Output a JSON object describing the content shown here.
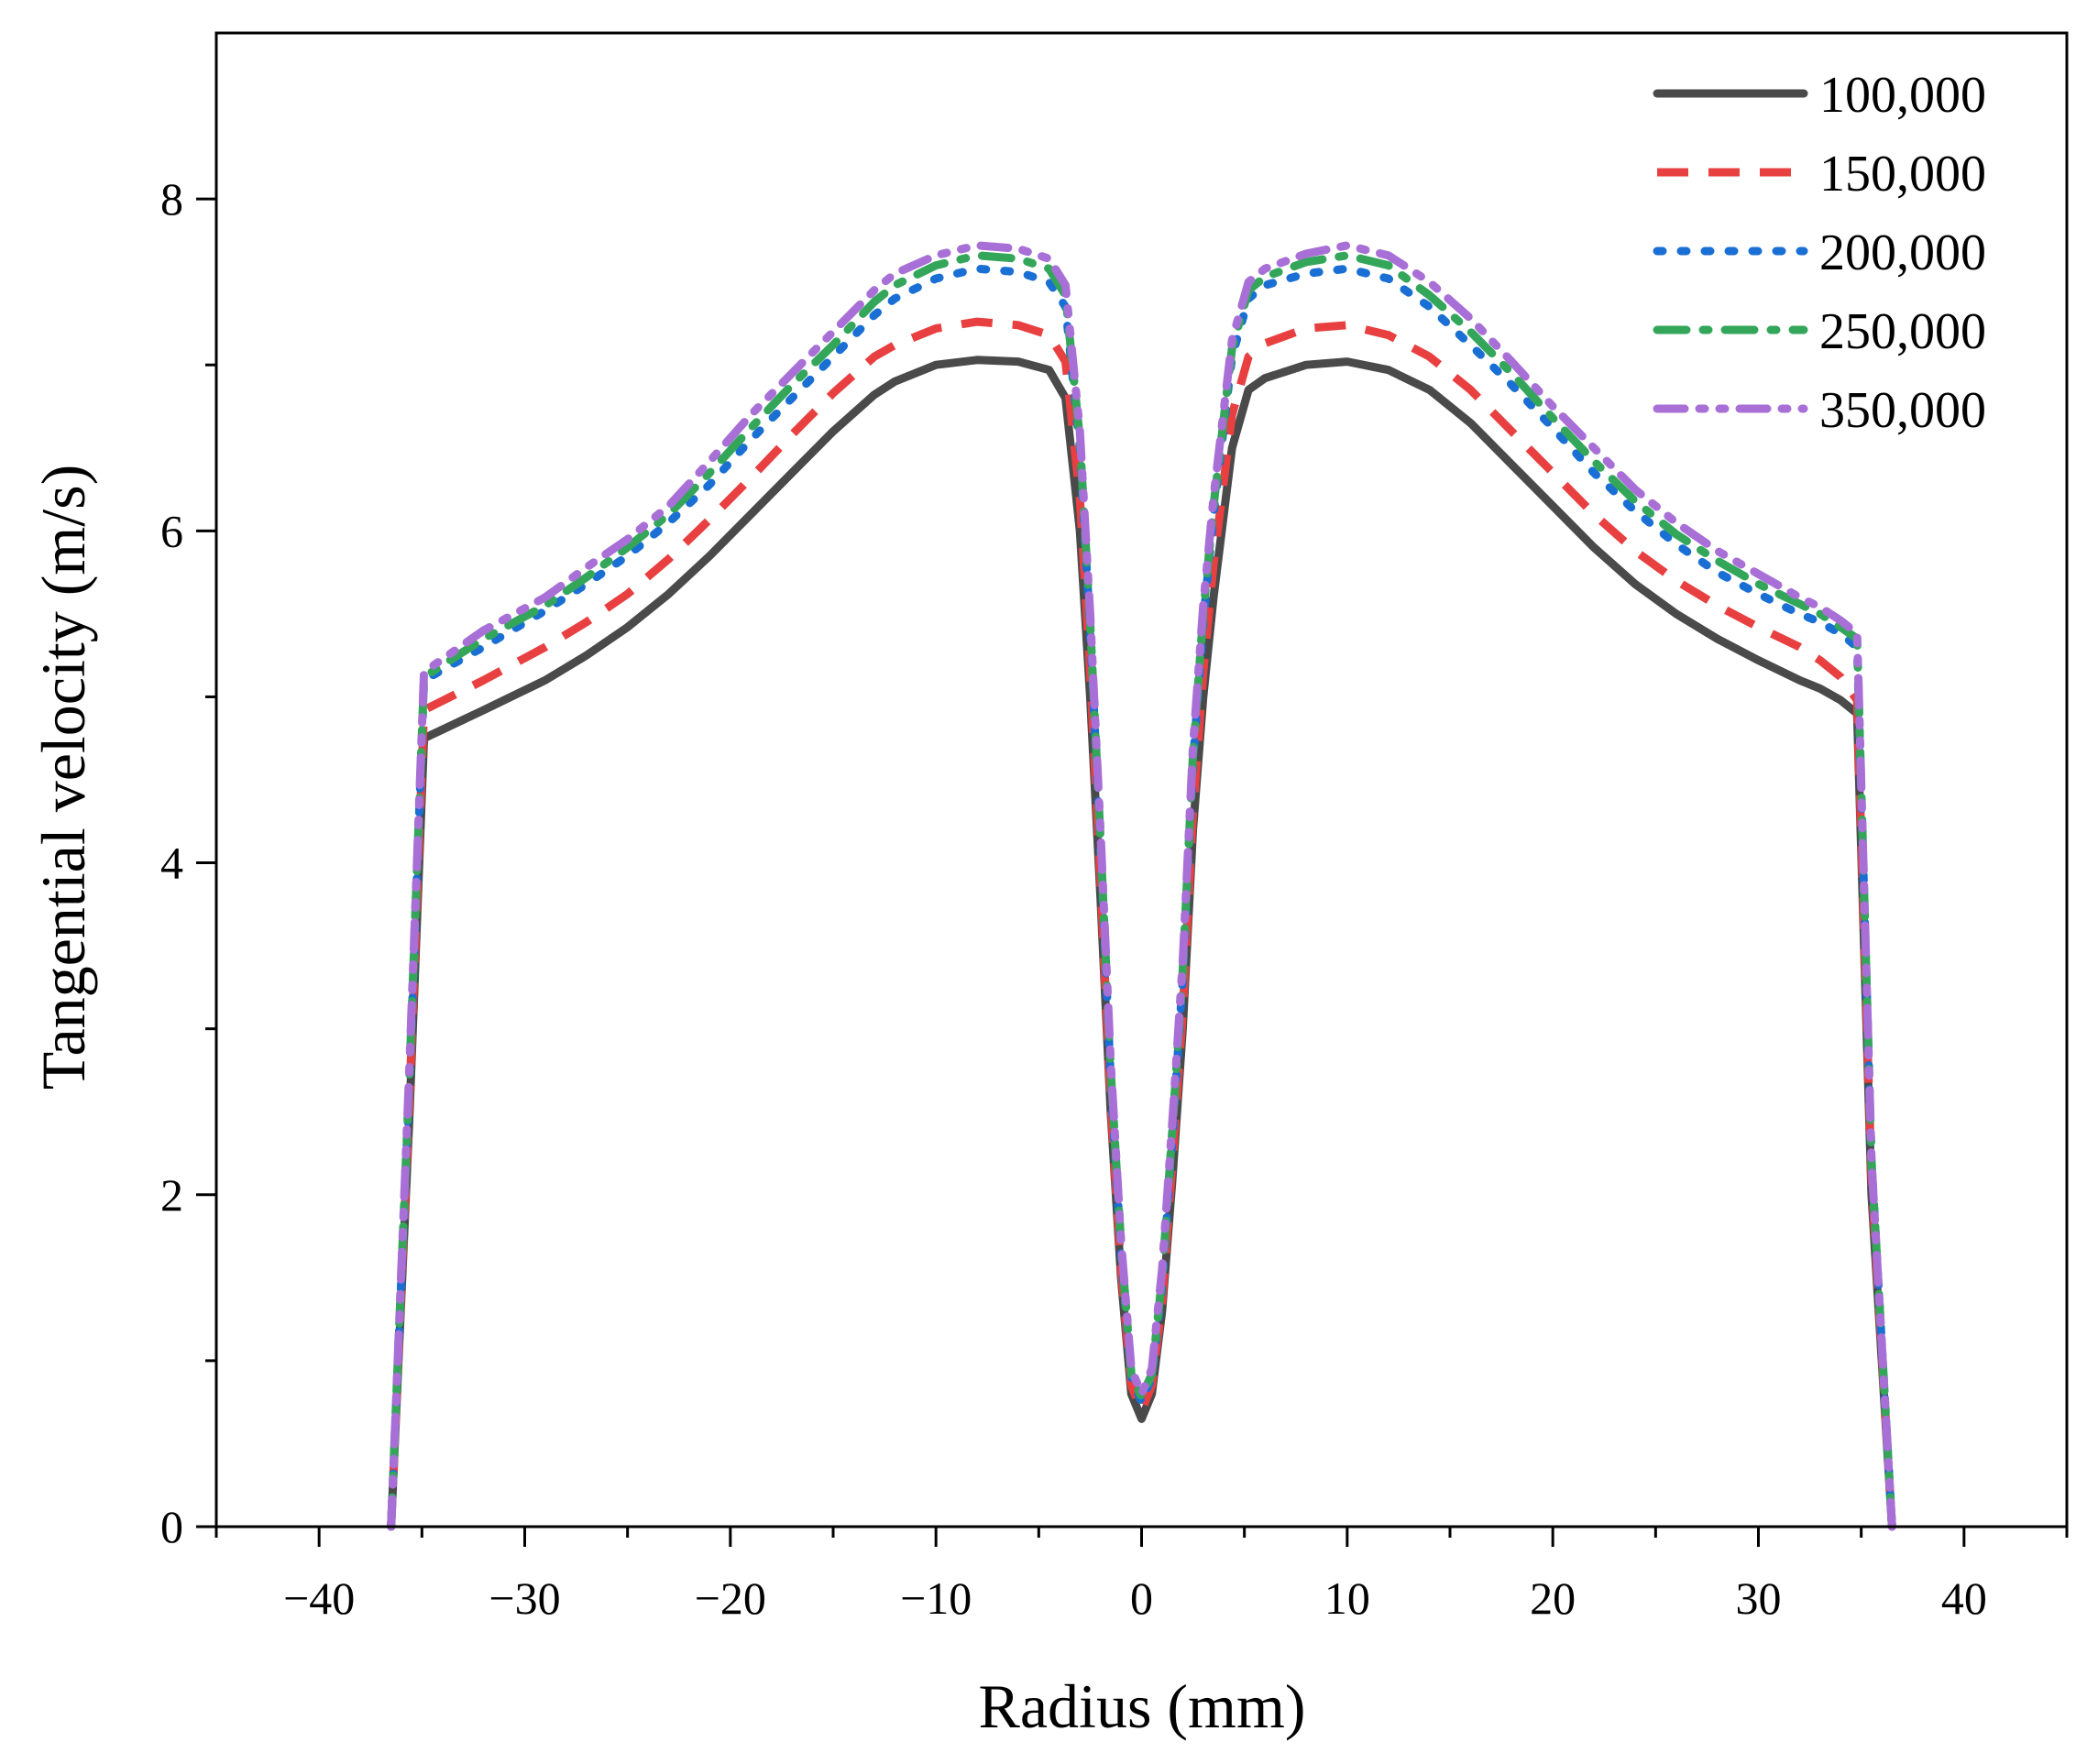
{
  "chart_data": {
    "type": "line",
    "title": "",
    "xlabel": "Radius (mm)",
    "ylabel": "Tangential velocity (m/s)",
    "xlim": [
      -45,
      45
    ],
    "ylim": [
      0,
      9
    ],
    "grid": false,
    "legend_position": "top-right",
    "x_ticks": [
      -40,
      -30,
      -20,
      -10,
      0,
      10,
      20,
      30,
      40
    ],
    "x_tick_labels": [
      "−40",
      "−30",
      "−20",
      "−10",
      "0",
      "10",
      "20",
      "30",
      "40"
    ],
    "y_ticks": [
      0,
      2,
      4,
      6,
      8
    ],
    "y_tick_labels": [
      "0",
      "2",
      "4",
      "6",
      "8"
    ],
    "series": [
      {
        "name": "100,000",
        "color": "#4a4a4a",
        "style": "solid",
        "x": [
          -36.5,
          -35.6,
          -34.9,
          -32,
          -29,
          -27,
          -25,
          -23,
          -21,
          -19,
          -17,
          -15,
          -13,
          -12,
          -10,
          -8,
          -6,
          -4.5,
          -3.7,
          -3,
          -2.5,
          -2,
          -1.5,
          -1,
          -0.5,
          0,
          0.5,
          1,
          1.5,
          2,
          2.5,
          3,
          3.5,
          4.4,
          5.2,
          6,
          8,
          10,
          12,
          14,
          16,
          18,
          20,
          22,
          24,
          26,
          28,
          30,
          32,
          33,
          34,
          34.8,
          35.5,
          36.5
        ],
        "y": [
          0,
          2.5,
          4.75,
          4.92,
          5.1,
          5.25,
          5.42,
          5.62,
          5.85,
          6.1,
          6.35,
          6.6,
          6.82,
          6.9,
          7.0,
          7.03,
          7.02,
          6.97,
          6.8,
          6.0,
          5.0,
          3.8,
          2.5,
          1.5,
          0.8,
          0.65,
          0.8,
          1.3,
          2.1,
          3.0,
          4.2,
          5.0,
          5.6,
          6.5,
          6.85,
          6.92,
          7.0,
          7.02,
          6.97,
          6.85,
          6.65,
          6.4,
          6.15,
          5.9,
          5.68,
          5.5,
          5.35,
          5.22,
          5.1,
          5.05,
          4.98,
          4.9,
          2.0,
          0
        ]
      },
      {
        "name": "150,000",
        "color": "#e84040",
        "style": "dashed",
        "x": [
          -36.5,
          -35.6,
          -34.9,
          -32,
          -29,
          -27,
          -25,
          -23,
          -21,
          -19,
          -17,
          -15,
          -13,
          -12,
          -10,
          -8,
          -6,
          -4.5,
          -3.7,
          -3,
          -2.5,
          -2,
          -1.5,
          -1,
          -0.5,
          0,
          0.5,
          1,
          1.5,
          2,
          2.5,
          3,
          3.5,
          4.4,
          5.2,
          6,
          8,
          10,
          12,
          14,
          16,
          18,
          20,
          22,
          24,
          26,
          28,
          30,
          32,
          33,
          34,
          34.8,
          35.5,
          36.5
        ],
        "y": [
          0,
          2.6,
          4.92,
          5.1,
          5.3,
          5.45,
          5.62,
          5.83,
          6.07,
          6.32,
          6.58,
          6.83,
          7.05,
          7.12,
          7.22,
          7.26,
          7.24,
          7.18,
          7.02,
          6.2,
          5.15,
          3.9,
          2.55,
          1.55,
          0.85,
          0.7,
          0.85,
          1.35,
          2.2,
          3.1,
          4.3,
          5.15,
          5.8,
          6.7,
          7.05,
          7.13,
          7.22,
          7.24,
          7.18,
          7.05,
          6.85,
          6.6,
          6.35,
          6.1,
          5.88,
          5.7,
          5.55,
          5.42,
          5.3,
          5.22,
          5.12,
          4.98,
          2.1,
          0
        ]
      },
      {
        "name": "200,000",
        "color": "#1a6fd4",
        "style": "dotted",
        "x": [
          -36.5,
          -35.6,
          -34.9,
          -32,
          -29,
          -27,
          -25,
          -23,
          -21,
          -19,
          -17,
          -15,
          -13,
          -12,
          -10,
          -8,
          -6,
          -4.5,
          -3.7,
          -3,
          -2.5,
          -2,
          -1.5,
          -1,
          -0.5,
          0,
          0.5,
          1,
          1.5,
          2,
          2.5,
          3,
          3.5,
          4.4,
          5.2,
          6,
          8,
          10,
          12,
          14,
          16,
          18,
          20,
          22,
          24,
          26,
          28,
          30,
          32,
          33,
          34,
          34.8,
          35.5,
          36.5
        ],
        "y": [
          0,
          2.7,
          5.1,
          5.3,
          5.52,
          5.68,
          5.85,
          6.05,
          6.28,
          6.55,
          6.8,
          7.05,
          7.3,
          7.4,
          7.52,
          7.58,
          7.56,
          7.5,
          7.35,
          6.5,
          5.4,
          4.1,
          2.7,
          1.65,
          0.9,
          0.75,
          0.9,
          1.45,
          2.35,
          3.3,
          4.6,
          5.45,
          6.1,
          7.05,
          7.4,
          7.48,
          7.55,
          7.58,
          7.52,
          7.35,
          7.12,
          6.88,
          6.62,
          6.35,
          6.12,
          5.92,
          5.75,
          5.62,
          5.5,
          5.45,
          5.38,
          5.3,
          2.2,
          0
        ]
      },
      {
        "name": "250,000",
        "color": "#33a65a",
        "style": "dashdot",
        "x": [
          -36.5,
          -35.6,
          -34.9,
          -32,
          -29,
          -27,
          -25,
          -23,
          -21,
          -19,
          -17,
          -15,
          -13,
          -12,
          -10,
          -8,
          -6,
          -4.5,
          -3.7,
          -3,
          -2.5,
          -2,
          -1.5,
          -1,
          -0.5,
          0,
          0.5,
          1,
          1.5,
          2,
          2.5,
          3,
          3.5,
          4.4,
          5.2,
          6,
          8,
          10,
          12,
          14,
          16,
          18,
          20,
          22,
          24,
          26,
          28,
          30,
          32,
          33,
          34,
          34.8,
          35.5,
          36.5
        ],
        "y": [
          0,
          2.75,
          5.12,
          5.35,
          5.55,
          5.72,
          5.9,
          6.1,
          6.35,
          6.62,
          6.88,
          7.12,
          7.38,
          7.48,
          7.6,
          7.66,
          7.64,
          7.58,
          7.42,
          6.55,
          5.45,
          4.15,
          2.75,
          1.7,
          0.92,
          0.78,
          0.92,
          1.5,
          2.4,
          3.35,
          4.65,
          5.5,
          6.15,
          7.1,
          7.45,
          7.53,
          7.62,
          7.66,
          7.6,
          7.42,
          7.2,
          6.95,
          6.68,
          6.42,
          6.18,
          5.98,
          5.82,
          5.68,
          5.56,
          5.5,
          5.42,
          5.35,
          2.2,
          0
        ]
      },
      {
        "name": "350,000",
        "color": "#a86fd6",
        "style": "dashdotdot",
        "x": [
          -36.5,
          -35.6,
          -34.9,
          -32,
          -29,
          -27,
          -25,
          -23,
          -21,
          -19,
          -17,
          -15,
          -13,
          -12,
          -10,
          -8,
          -6,
          -4.5,
          -3.7,
          -3,
          -2.5,
          -2,
          -1.5,
          -1,
          -0.5,
          0,
          0.5,
          1,
          1.5,
          2,
          2.5,
          3,
          3.5,
          4.4,
          5.2,
          6,
          8,
          10,
          12,
          14,
          16,
          18,
          20,
          22,
          24,
          26,
          28,
          30,
          32,
          33,
          34,
          34.8,
          35.5,
          36.5
        ],
        "y": [
          0,
          2.8,
          5.15,
          5.4,
          5.6,
          5.78,
          5.95,
          6.15,
          6.42,
          6.7,
          6.95,
          7.2,
          7.45,
          7.55,
          7.66,
          7.72,
          7.7,
          7.64,
          7.48,
          6.6,
          5.5,
          4.2,
          2.8,
          1.72,
          0.95,
          0.8,
          0.95,
          1.55,
          2.45,
          3.4,
          4.7,
          5.55,
          6.2,
          7.15,
          7.5,
          7.58,
          7.67,
          7.72,
          7.66,
          7.5,
          7.28,
          7.02,
          6.75,
          6.5,
          6.25,
          6.05,
          5.88,
          5.74,
          5.6,
          5.54,
          5.46,
          5.38,
          2.2,
          0
        ]
      }
    ]
  }
}
